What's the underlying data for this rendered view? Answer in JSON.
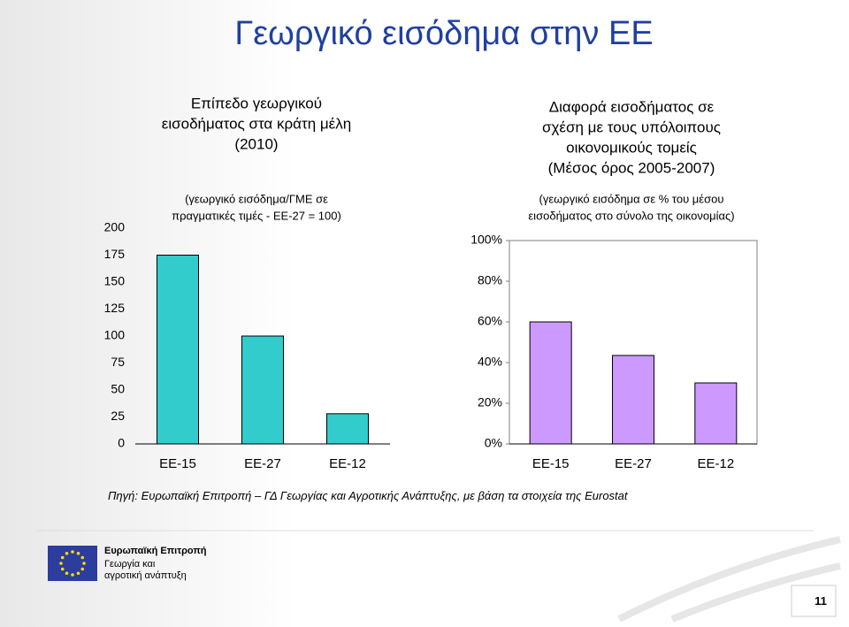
{
  "title": "Γεωργικό εισόδημα στην ΕΕ",
  "chart_data": [
    {
      "type": "bar",
      "title": [
        "Επίπεδο γεωργικού",
        "εισοδήματος στα κράτη μέλη",
        "(2010)"
      ],
      "subtitle": [
        "(γεωργικό εισόδημα/ΓΜΕ σε",
        "πραγματικές τιμές - ΕΕ-27 = 100)"
      ],
      "categories": [
        "ΕΕ-15",
        "ΕΕ-27",
        "ΕΕ-12"
      ],
      "values": [
        175,
        100,
        28
      ],
      "color": "#33cccc",
      "ylim": [
        0,
        200
      ],
      "yticks": [
        0,
        25,
        50,
        75,
        100,
        125,
        150,
        175,
        200
      ]
    },
    {
      "type": "bar",
      "title": [
        "Διαφορά εισοδήματος σε",
        "σχέση με τους υπόλοιπους",
        "οικονομικούς τομείς",
        "(Μέσος όρος 2005-2007)"
      ],
      "subtitle": [
        "(γεωργικό εισόδημα σε % του μέσου",
        "εισοδήματος στο σύνολο της οικονομίας)"
      ],
      "categories": [
        "ΕΕ-15",
        "ΕΕ-27",
        "ΕΕ-12"
      ],
      "values": [
        60,
        43.5,
        30
      ],
      "color": "#cc99ff",
      "ylim": [
        0,
        100
      ],
      "yticks": [
        {
          "value": 0,
          "label": "0%"
        },
        {
          "value": 20,
          "label": "20%"
        },
        {
          "value": 40,
          "label": "40%"
        },
        {
          "value": 60,
          "label": "60%"
        },
        {
          "value": 80,
          "label": "80%"
        },
        {
          "value": 100,
          "label": "100%"
        }
      ]
    }
  ],
  "source": "Πηγή: Ευρωπαϊκή Επιτροπή – ΓΔ Γεωργίας και Αγροτικής Ανάπτυξης, με βάση τα στοιχεία της Eurostat",
  "footer": {
    "organization": "Ευρωπαϊκή Επιτροπή",
    "department": [
      "Γεωργία και",
      "αγροτική ανάπτυξη"
    ]
  },
  "page_number": "11"
}
